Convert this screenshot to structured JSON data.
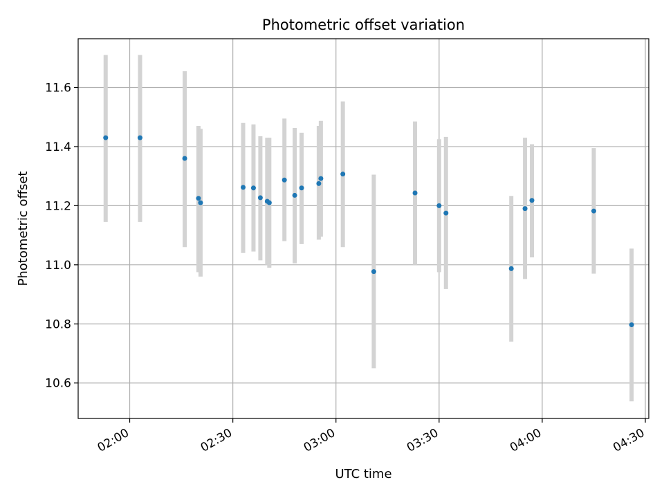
{
  "chart_data": {
    "type": "scatter",
    "title": "Photometric offset variation",
    "xlabel": "UTC time",
    "ylabel": "Photometric offset",
    "x_tick_labels": [
      "02:00",
      "02:30",
      "03:00",
      "03:30",
      "04:00",
      "04:30"
    ],
    "y_tick_labels": [
      "10.6",
      "10.8",
      "11.0",
      "11.2",
      "11.4",
      "11.6"
    ],
    "xlim": [
      "01:45",
      "04:31"
    ],
    "ylim": [
      10.48,
      11.765
    ],
    "grid": true,
    "colors": {
      "point": "#1f77b4",
      "errorbar": "#d3d3d3",
      "grid": "#b0b0b0"
    },
    "points": [
      {
        "x": "01:53",
        "y": 11.43,
        "ylo": 11.145,
        "yhi": 11.71
      },
      {
        "x": "02:03",
        "y": 11.43,
        "ylo": 11.145,
        "yhi": 11.71
      },
      {
        "x": "02:16",
        "y": 11.36,
        "ylo": 11.06,
        "yhi": 11.655
      },
      {
        "x": "02:20",
        "y": 11.225,
        "ylo": 10.975,
        "yhi": 11.47
      },
      {
        "x": "02:20",
        "y": 11.21,
        "ylo": 10.96,
        "yhi": 11.46
      },
      {
        "x": "02:33",
        "y": 11.262,
        "ylo": 11.04,
        "yhi": 11.48
      },
      {
        "x": "02:36",
        "y": 11.26,
        "ylo": 11.045,
        "yhi": 11.475
      },
      {
        "x": "02:38",
        "y": 11.227,
        "ylo": 11.015,
        "yhi": 11.435
      },
      {
        "x": "02:40",
        "y": 11.215,
        "ylo": 11.0,
        "yhi": 11.43
      },
      {
        "x": "02:40",
        "y": 11.21,
        "ylo": 10.99,
        "yhi": 11.43
      },
      {
        "x": "02:45",
        "y": 11.287,
        "ylo": 11.08,
        "yhi": 11.495
      },
      {
        "x": "02:48",
        "y": 11.235,
        "ylo": 11.005,
        "yhi": 11.463
      },
      {
        "x": "02:50",
        "y": 11.26,
        "ylo": 11.07,
        "yhi": 11.447
      },
      {
        "x": "02:55",
        "y": 11.275,
        "ylo": 11.085,
        "yhi": 11.47
      },
      {
        "x": "02:55",
        "y": 11.292,
        "ylo": 11.095,
        "yhi": 11.487
      },
      {
        "x": "03:02",
        "y": 11.307,
        "ylo": 11.06,
        "yhi": 11.553
      },
      {
        "x": "03:11",
        "y": 10.977,
        "ylo": 10.65,
        "yhi": 11.305
      },
      {
        "x": "03:23",
        "y": 11.243,
        "ylo": 11.0,
        "yhi": 11.485
      },
      {
        "x": "03:30",
        "y": 11.2,
        "ylo": 10.975,
        "yhi": 11.425
      },
      {
        "x": "03:32",
        "y": 11.175,
        "ylo": 10.918,
        "yhi": 11.433
      },
      {
        "x": "03:51",
        "y": 10.987,
        "ylo": 10.74,
        "yhi": 11.233
      },
      {
        "x": "03:55",
        "y": 11.19,
        "ylo": 10.952,
        "yhi": 11.43
      },
      {
        "x": "03:57",
        "y": 11.218,
        "ylo": 11.025,
        "yhi": 11.408
      },
      {
        "x": "04:15",
        "y": 11.182,
        "ylo": 10.97,
        "yhi": 11.395
      },
      {
        "x": "04:26",
        "y": 10.797,
        "ylo": 10.538,
        "yhi": 11.055
      }
    ]
  }
}
